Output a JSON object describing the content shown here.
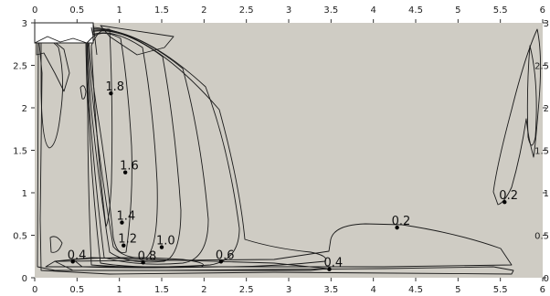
{
  "chart_data": {
    "type": "contour",
    "title": "",
    "xlabel": "",
    "ylabel": "",
    "xlim": [
      0,
      6
    ],
    "ylim": [
      0,
      3
    ],
    "x_ticks": [
      "0",
      "0.5",
      "1",
      "1.5",
      "2",
      "2.5",
      "3",
      "3.5",
      "4",
      "4.5",
      "5",
      "5.5",
      "6"
    ],
    "y_ticks": [
      "0",
      "0.5",
      "1",
      "1.5",
      "2",
      "2.5",
      "3"
    ],
    "grid": false,
    "colors": {
      "background": "#cfccc4",
      "frame": "#ffffff",
      "lines": "#1a1a1a"
    },
    "contour_labels": [
      {
        "text": "1.8",
        "x": 0.9,
        "y": 2.17
      },
      {
        "text": "1.6",
        "x": 1.07,
        "y": 1.24
      },
      {
        "text": "1.4",
        "x": 1.03,
        "y": 0.65
      },
      {
        "text": "1.2",
        "x": 1.05,
        "y": 0.38
      },
      {
        "text": "1.0",
        "x": 1.5,
        "y": 0.36
      },
      {
        "text": "0.8",
        "x": 1.28,
        "y": 0.18
      },
      {
        "text": "0.6",
        "x": 2.2,
        "y": 0.19
      },
      {
        "text": "0.4",
        "x": 0.45,
        "y": 0.19
      },
      {
        "text": "0.4",
        "x": 3.48,
        "y": 0.1
      },
      {
        "text": "0.2",
        "x": 4.28,
        "y": 0.59
      },
      {
        "text": "0.2",
        "x": 5.55,
        "y": 0.89
      }
    ]
  }
}
